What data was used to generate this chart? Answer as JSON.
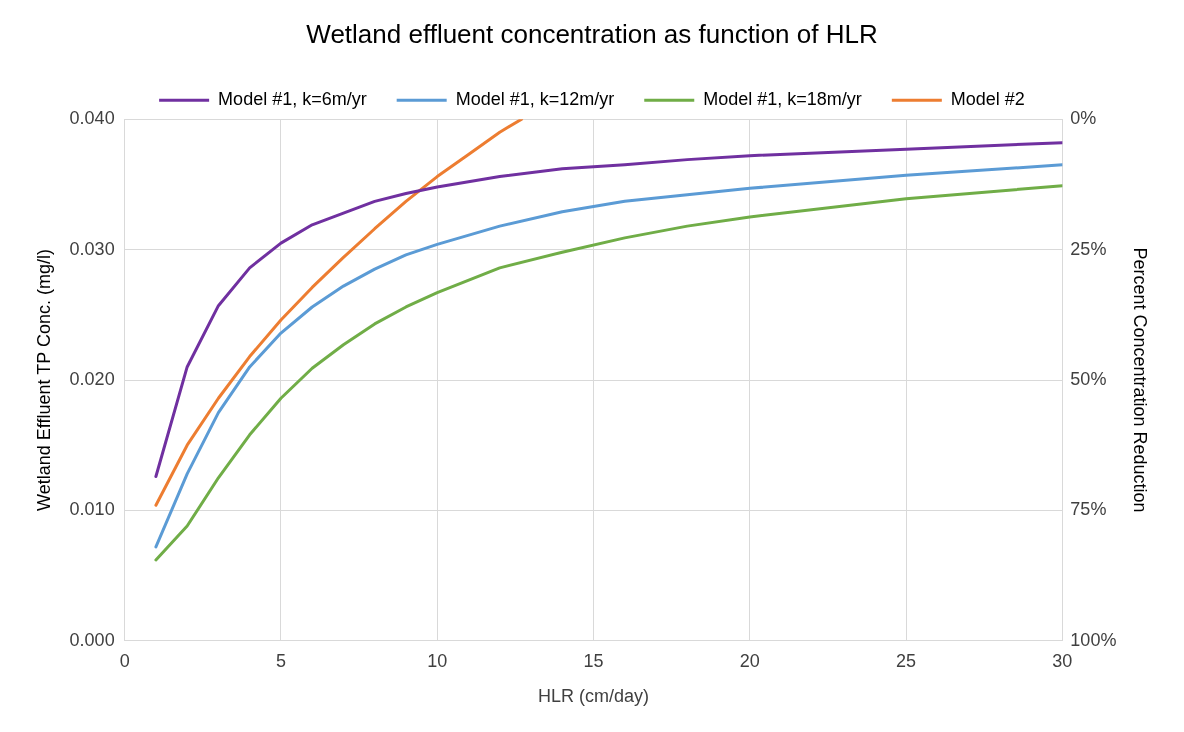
{
  "chart_data": {
    "type": "line",
    "title": "Wetland effluent concentration as function of HLR",
    "xlabel": "HLR (cm/day)",
    "ylabel": "Wetland Effluent TP Conc. (mg/l)",
    "y2label": "Percent Concentration Reduction",
    "x": [
      1,
      2,
      3,
      4,
      5,
      6,
      7,
      8,
      9,
      10,
      12,
      14,
      16,
      18,
      20,
      25,
      30
    ],
    "series": [
      {
        "name": "Model #1, k=6m/yr",
        "color": "#7030a0",
        "values": [
          0.0126,
          0.021,
          0.0257,
          0.0286,
          0.0305,
          0.0319,
          0.0328,
          0.0337,
          0.0343,
          0.0348,
          0.0356,
          0.0362,
          0.0365,
          0.0369,
          0.0372,
          0.0377,
          0.0382
        ]
      },
      {
        "name": "Model #1, k=12m/yr",
        "color": "#5b9bd5",
        "values": [
          0.0072,
          0.0128,
          0.0175,
          0.021,
          0.0236,
          0.0256,
          0.0272,
          0.0285,
          0.0296,
          0.0304,
          0.0318,
          0.0329,
          0.0337,
          0.0342,
          0.0347,
          0.0357,
          0.0365
        ]
      },
      {
        "name": "Model #1, k=18m/yr",
        "color": "#70ad47",
        "values": [
          0.0062,
          0.0088,
          0.0125,
          0.0158,
          0.0186,
          0.0209,
          0.0227,
          0.0243,
          0.0256,
          0.0267,
          0.0286,
          0.0298,
          0.0309,
          0.0318,
          0.0325,
          0.0339,
          0.0349
        ]
      },
      {
        "name": "Model #2",
        "color": "#ed7d31",
        "x": [
          1,
          2,
          3,
          4,
          5,
          6,
          7,
          8,
          9,
          10,
          11,
          12,
          12.7
        ],
        "values": [
          0.0104,
          0.015,
          0.0186,
          0.0218,
          0.0246,
          0.0271,
          0.0294,
          0.0316,
          0.0337,
          0.0356,
          0.0373,
          0.039,
          0.04
        ]
      }
    ],
    "xlim": [
      0,
      30
    ],
    "xticks": [
      0,
      5,
      10,
      15,
      20,
      25,
      30
    ],
    "ylim": [
      0,
      0.04
    ],
    "yticks": [
      {
        "value": 0,
        "label": "0.000"
      },
      {
        "value": 0.01,
        "label": "0.010"
      },
      {
        "value": 0.02,
        "label": "0.020"
      },
      {
        "value": 0.03,
        "label": "0.030"
      },
      {
        "value": 0.04,
        "label": "0.040"
      }
    ],
    "y2lim": [
      100,
      0
    ],
    "y2ticks": [
      {
        "value": 100,
        "label": "100%"
      },
      {
        "value": 75,
        "label": "75%"
      },
      {
        "value": 50,
        "label": "50%"
      },
      {
        "value": 25,
        "label": "25%"
      },
      {
        "value": 0,
        "label": "0%"
      }
    ],
    "grid": true,
    "legend": "top",
    "marker": "none",
    "line_style": "solid"
  }
}
